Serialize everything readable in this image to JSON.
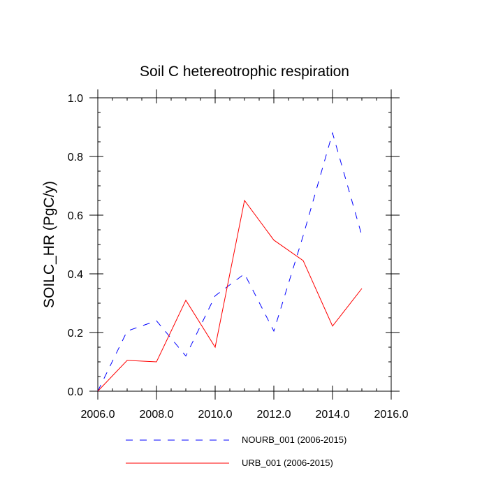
{
  "chart_data": {
    "type": "line",
    "title": "Soil C hetereotrophic respiration",
    "xlabel": "",
    "ylabel": "SOILC_HR  (PgC/y)",
    "xlim": [
      2006.0,
      2016.0
    ],
    "ylim": [
      0.0,
      1.0
    ],
    "x_ticks": [
      2006.0,
      2008.0,
      2010.0,
      2012.0,
      2014.0,
      2016.0
    ],
    "x_tick_labels": [
      "2006.0",
      "2008.0",
      "2010.0",
      "2012.0",
      "2014.0",
      "2016.0"
    ],
    "y_ticks": [
      0.0,
      0.2,
      0.4,
      0.6,
      0.8,
      1.0
    ],
    "y_tick_labels": [
      "0.0",
      "0.2",
      "0.4",
      "0.6",
      "0.8",
      "1.0"
    ],
    "x": [
      2006,
      2007,
      2008,
      2009,
      2010,
      2011,
      2012,
      2013,
      2014,
      2015
    ],
    "series": [
      {
        "name": "NOURB_001 (2006-2015)",
        "color": "#0000ff",
        "style": "dashed",
        "values": [
          0.0,
          0.205,
          0.24,
          0.12,
          0.325,
          0.4,
          0.205,
          0.53,
          0.88,
          0.53
        ]
      },
      {
        "name": "URB_001 (2006-2015)",
        "color": "#ff0000",
        "style": "solid",
        "values": [
          0.0,
          0.105,
          0.1,
          0.31,
          0.15,
          0.65,
          0.515,
          0.445,
          0.222,
          0.35
        ]
      }
    ],
    "legend_position": "bottom",
    "grid": false
  }
}
